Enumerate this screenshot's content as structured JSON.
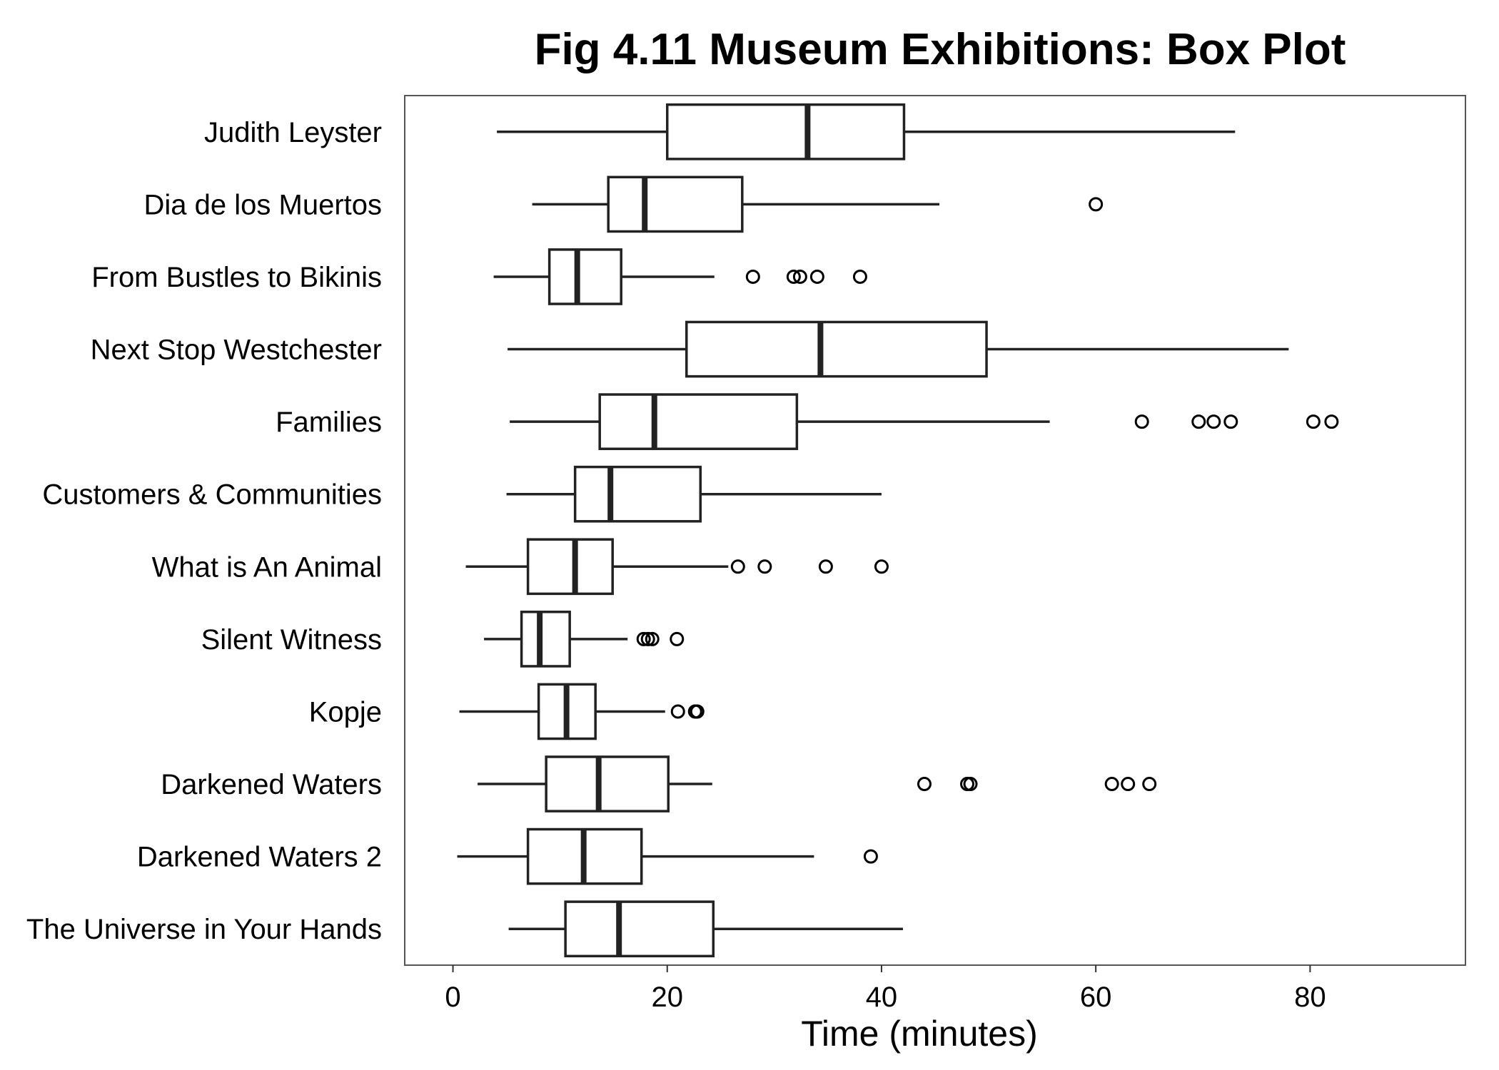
{
  "chart_data": {
    "type": "boxplot",
    "orientation": "horizontal",
    "title": "Fig 4.11 Museum Exhibitions: Box Plot",
    "xlabel": "Time (minutes)",
    "ylabel": "",
    "xlim": [
      -4.5,
      94.5
    ],
    "xticks": [
      0,
      20,
      40,
      60,
      80
    ],
    "grid": false,
    "legend": false,
    "colors": {
      "box_fill": "#ffffff",
      "box_stroke": "#222222",
      "outlier_stroke": "#000000",
      "frame": "#555555"
    },
    "categories": [
      "Judith Leyster",
      "Dia de los Muertos",
      "From Bustles to Bikinis",
      "Next Stop Westchester",
      "Families",
      "Customers & Communities",
      "What is An Animal",
      "Silent Witness",
      "Kopje",
      "Darkened Waters",
      "Darkened Waters 2",
      "The Universe in Your Hands"
    ],
    "boxes": [
      {
        "min": 4.1,
        "q1": 20.0,
        "median": 33.1,
        "q3": 42.1,
        "max": 73.0,
        "outliers": []
      },
      {
        "min": 7.4,
        "q1": 14.5,
        "median": 17.9,
        "q3": 27.0,
        "max": 45.4,
        "outliers": [
          60.0
        ]
      },
      {
        "min": 3.8,
        "q1": 9.0,
        "median": 11.6,
        "q3": 15.7,
        "max": 24.4,
        "outliers": [
          28.0,
          31.8,
          32.4,
          34.0,
          38.0
        ]
      },
      {
        "min": 5.1,
        "q1": 21.8,
        "median": 34.3,
        "q3": 49.8,
        "max": 78.0,
        "outliers": []
      },
      {
        "min": 5.3,
        "q1": 13.7,
        "median": 18.8,
        "q3": 32.1,
        "max": 55.7,
        "outliers": [
          64.3,
          69.6,
          71.0,
          72.6,
          80.3,
          82.0
        ]
      },
      {
        "min": 5.0,
        "q1": 11.4,
        "median": 14.7,
        "q3": 23.1,
        "max": 40.0,
        "outliers": []
      },
      {
        "min": 1.2,
        "q1": 7.0,
        "median": 11.4,
        "q3": 14.9,
        "max": 25.7,
        "outliers": [
          26.6,
          29.1,
          34.8,
          40.0
        ]
      },
      {
        "min": 2.9,
        "q1": 6.4,
        "median": 8.1,
        "q3": 10.9,
        "max": 16.3,
        "outliers": [
          17.8,
          18.2,
          18.6,
          20.9
        ]
      },
      {
        "min": 0.6,
        "q1": 8.0,
        "median": 10.6,
        "q3": 13.3,
        "max": 19.8,
        "outliers": [
          21.0,
          22.6,
          22.8
        ]
      },
      {
        "min": 2.3,
        "q1": 8.7,
        "median": 13.6,
        "q3": 20.1,
        "max": 24.2,
        "outliers": [
          44.0,
          48.0,
          48.3,
          61.5,
          63.0,
          65.0
        ]
      },
      {
        "min": 0.4,
        "q1": 7.0,
        "median": 12.2,
        "q3": 17.6,
        "max": 33.7,
        "outliers": [
          39.0
        ]
      },
      {
        "min": 5.2,
        "q1": 10.5,
        "median": 15.5,
        "q3": 24.3,
        "max": 42.0,
        "outliers": []
      }
    ]
  }
}
